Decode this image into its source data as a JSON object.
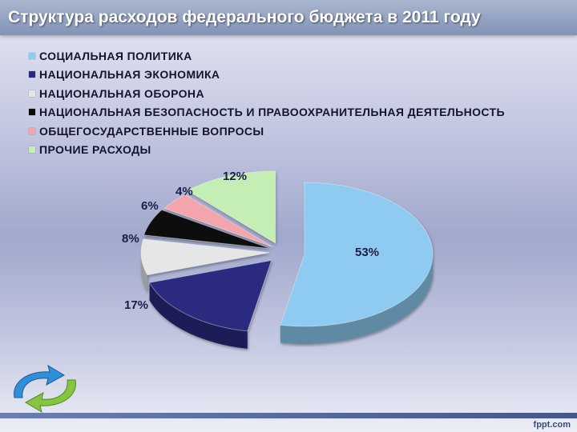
{
  "title": "Структура расходов федерального бюджета в 2011 году",
  "footer": "fppt.com",
  "chart_data": {
    "type": "pie",
    "title": "Структура расходов федерального бюджета в 2011 году",
    "legend_position": "top-left",
    "labels": [
      "СОЦИАЛЬНАЯ ПОЛИТИКА",
      "НАЦИОНАЛЬНАЯ ЭКОНОМИКА",
      "НАЦИОНАЛЬНАЯ ОБОРОНА",
      "НАЦИОНАЛЬНАЯ БЕЗОПАСНОСТЬ И ПРАВООХРАНИТЕЛЬНАЯ ДЕЯТЕЛЬНОСТЬ",
      "ОБЩЕГОСУДАРСТВЕННЫЕ ВОПРОСЫ",
      "ПРОЧИЕ РАСХОДЫ"
    ],
    "values": [
      53,
      17,
      8,
      6,
      4,
      12
    ],
    "value_labels": [
      "53%",
      "17%",
      "8%",
      "6%",
      "4%",
      "12%"
    ],
    "colors": [
      "#8fcbf0",
      "#2a2a7e",
      "#e6e6e6",
      "#0a0a0a",
      "#f2a6ac",
      "#c4eeb4"
    ]
  }
}
